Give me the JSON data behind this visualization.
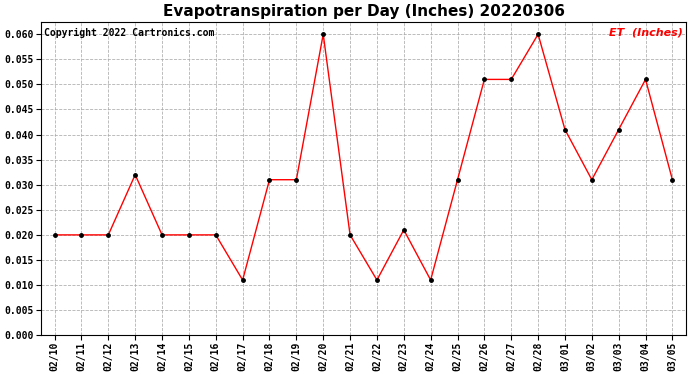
{
  "title": "Evapotranspiration per Day (Inches) 20220306",
  "copyright": "Copyright 2022 Cartronics.com",
  "legend_label": "ET  (Inches)",
  "dates": [
    "02/10",
    "02/11",
    "02/12",
    "02/13",
    "02/14",
    "02/15",
    "02/16",
    "02/17",
    "02/18",
    "02/19",
    "02/20",
    "02/21",
    "02/22",
    "02/23",
    "02/24",
    "02/25",
    "02/26",
    "02/27",
    "02/28",
    "03/01",
    "03/02",
    "03/03",
    "03/04",
    "03/05"
  ],
  "values": [
    0.02,
    0.02,
    0.02,
    0.032,
    0.02,
    0.02,
    0.02,
    0.011,
    0.031,
    0.031,
    0.06,
    0.02,
    0.011,
    0.021,
    0.011,
    0.031,
    0.051,
    0.051,
    0.06,
    0.041,
    0.031,
    0.041,
    0.051,
    0.031
  ],
  "line_color": "red",
  "marker_color": "black",
  "title_fontsize": 11,
  "copyright_fontsize": 7,
  "legend_fontsize": 8,
  "tick_fontsize": 7,
  "legend_color": "red",
  "ylim_min": 0.0,
  "ylim_max": 0.0625,
  "yticks": [
    0.0,
    0.005,
    0.01,
    0.015,
    0.02,
    0.025,
    0.03,
    0.035,
    0.04,
    0.045,
    0.05,
    0.055,
    0.06
  ],
  "grid_color": "#aaaaaa",
  "background_color": "#ffffff"
}
